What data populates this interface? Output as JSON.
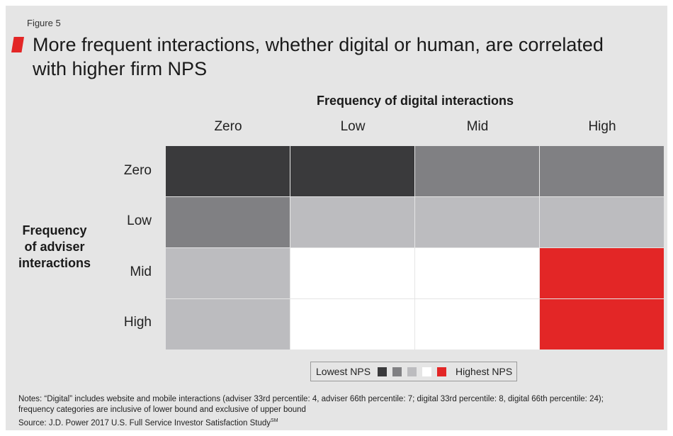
{
  "figure_label": "Figure 5",
  "title_line1": "More frequent interactions, whether digital or human, are correlated",
  "title_line2": "with higher firm NPS",
  "colors": {
    "accent": "#e32626",
    "panel": "#e5e5e5",
    "level1": "#3a3a3c",
    "level2": "#808083",
    "level3": "#bcbcbf",
    "level4": "#ffffff",
    "level5": "#e32626"
  },
  "chart_data": {
    "type": "heatmap",
    "title": "More frequent interactions, whether digital or human, are correlated with higher firm NPS",
    "xlabel": "Frequency of digital interactions",
    "ylabel_lines": [
      "Frequency",
      "of adviser",
      "interactions"
    ],
    "x_categories": [
      "Zero",
      "Low",
      "Mid",
      "High"
    ],
    "y_categories": [
      "Zero",
      "Low",
      "Mid",
      "High"
    ],
    "values": [
      [
        1,
        1,
        2,
        2
      ],
      [
        2,
        3,
        3,
        3
      ],
      [
        3,
        4,
        4,
        5
      ],
      [
        3,
        4,
        4,
        5
      ]
    ],
    "scale_levels": 5,
    "legend": {
      "low_label": "Lowest NPS",
      "high_label": "Highest NPS"
    }
  },
  "notes": {
    "line1": "Notes: “Digital” includes website and mobile interactions (adviser 33rd percentile: 4, adviser 66th percentile: 7; digital 33rd percentile: 8, digital 66th percentile: 24);",
    "line2": "frequency categories are inclusive of lower bound and exclusive of upper bound",
    "source": "Source: J.D. Power 2017 U.S. Full Service Investor Satisfaction Study",
    "source_sup": "SM"
  }
}
